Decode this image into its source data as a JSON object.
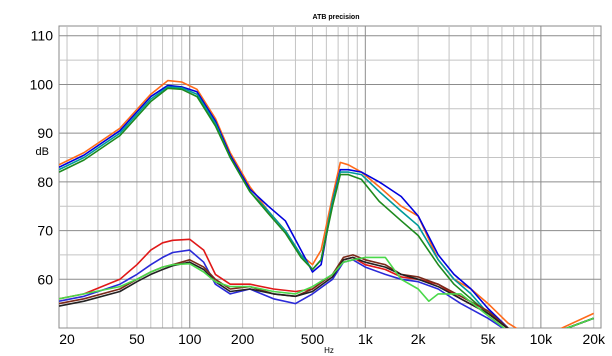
{
  "chart_data": {
    "type": "line",
    "title": "ATB precision",
    "xlabel": "Hz",
    "ylabel": "dB",
    "x_scale": "log",
    "xlim": [
      18,
      22000
    ],
    "ylim": [
      50,
      112
    ],
    "grid": true,
    "x_ticks": [
      {
        "value": 20,
        "label": "20"
      },
      {
        "value": 50,
        "label": "50"
      },
      {
        "value": 100,
        "label": "100"
      },
      {
        "value": 200,
        "label": "200"
      },
      {
        "value": 500,
        "label": "500"
      },
      {
        "value": 1000,
        "label": "1k"
      },
      {
        "value": 2000,
        "label": "2k"
      },
      {
        "value": 5000,
        "label": "5k"
      },
      {
        "value": 10000,
        "label": "10k"
      },
      {
        "value": 20000,
        "label": "20k"
      }
    ],
    "y_ticks": [
      {
        "value": 60,
        "label": "60"
      },
      {
        "value": 70,
        "label": "70"
      },
      {
        "value": 80,
        "label": "80"
      },
      {
        "value": 90,
        "label": "90"
      },
      {
        "value": 100,
        "label": "100"
      },
      {
        "value": 110,
        "label": "110"
      }
    ],
    "series": [
      {
        "color": "#ff6a1a",
        "x": [
          18,
          25,
          40,
          60,
          75,
          90,
          110,
          140,
          170,
          220,
          280,
          350,
          430,
          500,
          560,
          650,
          720,
          800,
          950,
          1200,
          1600,
          2000,
          2600,
          3200,
          4000,
          5000,
          6500,
          8000,
          10000,
          20000
        ],
        "y": [
          83.5,
          86,
          91,
          98,
          100.8,
          100.5,
          99,
          93,
          86,
          79,
          74,
          70,
          65,
          63,
          66,
          77,
          84,
          83.5,
          82,
          79,
          75,
          73,
          64,
          60,
          58,
          55,
          51,
          49,
          48,
          53
        ]
      },
      {
        "color": "#0000dd",
        "x": [
          18,
          25,
          40,
          60,
          75,
          90,
          110,
          140,
          170,
          220,
          280,
          350,
          430,
          500,
          560,
          650,
          720,
          800,
          950,
          1200,
          1600,
          2000,
          2600,
          3200,
          4000,
          5000,
          6500,
          8000,
          10000,
          20000
        ],
        "y": [
          83,
          85.5,
          90.5,
          97.5,
          99.8,
          99.5,
          98.5,
          92.5,
          85.5,
          78.5,
          75,
          72,
          66,
          61.5,
          63,
          76,
          82.5,
          82.5,
          82,
          80,
          77,
          73,
          65,
          61,
          58,
          54,
          50,
          48,
          48,
          52
        ]
      },
      {
        "color": "#009a9a",
        "x": [
          18,
          25,
          40,
          60,
          75,
          90,
          110,
          140,
          170,
          220,
          280,
          350,
          430,
          500,
          560,
          650,
          720,
          800,
          950,
          1200,
          1600,
          2000,
          2600,
          3200,
          4000,
          5000,
          6500,
          8000,
          10000,
          20000
        ],
        "y": [
          82.5,
          85,
          90,
          97,
          99.5,
          99.3,
          98,
          92,
          85,
          78,
          74,
          70,
          65,
          62,
          64,
          76,
          82,
          82,
          81.5,
          78,
          74,
          71,
          64,
          60,
          57,
          53,
          50,
          48,
          48,
          52
        ]
      },
      {
        "color": "#1e8a1e",
        "x": [
          18,
          25,
          40,
          60,
          75,
          90,
          110,
          140,
          170,
          220,
          280,
          350,
          430,
          500,
          560,
          650,
          720,
          800,
          950,
          1200,
          1600,
          2000,
          2600,
          3200,
          4000,
          5000,
          6500,
          8000,
          10000,
          20000
        ],
        "y": [
          82,
          84.5,
          89.5,
          96.5,
          99.2,
          99,
          97.5,
          91.5,
          85,
          78,
          73.5,
          69.5,
          64.5,
          62,
          64,
          75,
          81.5,
          81.5,
          80.5,
          76,
          72,
          69,
          63,
          59,
          56,
          53,
          50,
          48,
          48,
          52
        ]
      },
      {
        "color": "#e01818",
        "x": [
          18,
          25,
          40,
          50,
          60,
          70,
          80,
          100,
          120,
          140,
          170,
          220,
          300,
          400,
          500,
          650,
          750,
          850,
          1000,
          1300,
          1600,
          2000,
          2600,
          3500,
          5000,
          7000,
          10000,
          20000
        ],
        "y": [
          56,
          57,
          60,
          63,
          66,
          67.5,
          68,
          68.2,
          66,
          61,
          59,
          59,
          58,
          57.5,
          58,
          61,
          64,
          64.5,
          63,
          62,
          60.5,
          60,
          59,
          56,
          53,
          49,
          48,
          52
        ]
      },
      {
        "color": "#2a2ad8",
        "x": [
          18,
          25,
          40,
          50,
          60,
          70,
          80,
          100,
          120,
          140,
          170,
          220,
          300,
          400,
          500,
          650,
          750,
          850,
          1000,
          1300,
          1600,
          2000,
          2600,
          3500,
          5000,
          7000,
          10000,
          20000
        ],
        "y": [
          55.5,
          56.5,
          59,
          61,
          63,
          64.5,
          65.5,
          66,
          63.5,
          59,
          57,
          58,
          56,
          55,
          57,
          60,
          63.5,
          64,
          62.5,
          61,
          60,
          59.5,
          58,
          55,
          52,
          48.5,
          48,
          52
        ]
      },
      {
        "color": "#7a2a1a",
        "x": [
          18,
          25,
          40,
          50,
          60,
          70,
          80,
          100,
          120,
          140,
          170,
          220,
          300,
          400,
          500,
          650,
          750,
          850,
          1000,
          1300,
          1600,
          2000,
          2600,
          3500,
          5000,
          7000,
          10000,
          20000
        ],
        "y": [
          55,
          56,
          58,
          60,
          61.5,
          62.5,
          63,
          64,
          62.5,
          60,
          58,
          58.5,
          57,
          56.5,
          58,
          61,
          64.5,
          65,
          64,
          63,
          61,
          60.5,
          59,
          56.5,
          53.5,
          49,
          48,
          52
        ]
      },
      {
        "color": "#222222",
        "x": [
          18,
          25,
          40,
          50,
          60,
          70,
          80,
          100,
          120,
          140,
          170,
          220,
          300,
          400,
          500,
          650,
          750,
          850,
          1000,
          1300,
          1600,
          2000,
          2600,
          3500,
          5000,
          7000,
          10000,
          20000
        ],
        "y": [
          54.5,
          55.5,
          57.5,
          59.5,
          61,
          62,
          62.8,
          63.5,
          62,
          59.5,
          57.5,
          58,
          57,
          56.5,
          57.5,
          60.5,
          64,
          64.5,
          63.5,
          62.5,
          61,
          60,
          58.5,
          56,
          53,
          49,
          48,
          52
        ]
      },
      {
        "color": "#4ad84a",
        "x": [
          18,
          25,
          40,
          50,
          60,
          70,
          80,
          100,
          120,
          140,
          170,
          220,
          300,
          400,
          500,
          650,
          750,
          850,
          1000,
          1300,
          1600,
          2000,
          2300,
          2600,
          3500,
          5000,
          7000,
          10000,
          20000
        ],
        "y": [
          56,
          57,
          58.5,
          60,
          61.5,
          62.5,
          63,
          63.2,
          61.5,
          59.5,
          58.5,
          58.5,
          57.5,
          57,
          58.5,
          61,
          63.5,
          64,
          64.5,
          64.5,
          60,
          58,
          55.5,
          57,
          57,
          52.5,
          48.5,
          48,
          52
        ]
      }
    ]
  }
}
